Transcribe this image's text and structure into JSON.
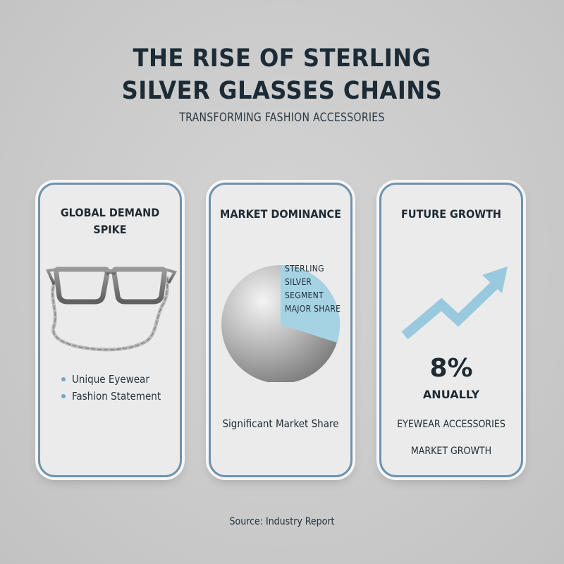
{
  "header": {
    "title_line1": "THE RISE OF STERLING",
    "title_line2": "SILVER GLASSES CHAINS",
    "subtitle": "TRANSFORMING FASHION ACCESSORIES"
  },
  "cards": [
    {
      "title_line1": "GLOBAL DEMAND",
      "title_line2": "SPIKE",
      "icon": "glasses-with-chain-icon",
      "bullets": [
        "Unique Eyewear",
        "Fashion Statement"
      ]
    },
    {
      "title": "MARKET DOMINANCE",
      "pie_label_lines": [
        "STERLING SILVER",
        "SEGMENT",
        "MAJOR SHARE"
      ],
      "caption": "Significant Market Share",
      "highlight_share": 0.3
    },
    {
      "title": "FUTURE GROWTH",
      "icon": "upward-trend-arrow-icon",
      "value": "8%",
      "value_label": "ANUALLY",
      "desc_line1": "EYEWEAR ACCESSORIES",
      "desc_line2": "MARKET GROWTH"
    }
  ],
  "footer": {
    "source": "Source: Industry Report"
  },
  "colors": {
    "accent": "#8fc3d9",
    "card_border": "#6f93ad",
    "text": "#1f2a33",
    "background": "#cbcbcb"
  }
}
